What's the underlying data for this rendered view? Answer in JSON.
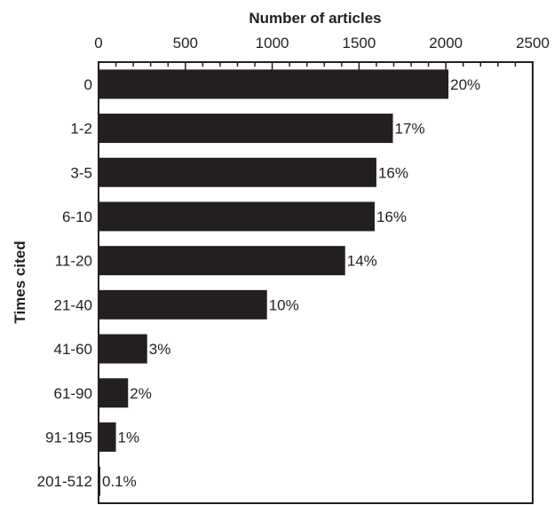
{
  "chart_data": {
    "type": "bar",
    "orientation": "horizontal",
    "xlabel": "Number of articles",
    "ylabel": "Times cited",
    "xlim": [
      0,
      2500
    ],
    "xticks": [
      "0",
      "500",
      "1000",
      "1500",
      "2000",
      "2500"
    ],
    "x_axis_position": "top",
    "grid": false,
    "colors": {
      "bar": "#231f20"
    },
    "categories": [
      "0",
      "1-2",
      "3-5",
      "6-10",
      "11-20",
      "21-40",
      "41-60",
      "61-90",
      "91-195",
      "201-512"
    ],
    "values": [
      2015,
      1695,
      1600,
      1590,
      1420,
      970,
      280,
      170,
      100,
      10
    ],
    "labels": [
      "20%",
      "17%",
      "16%",
      "16%",
      "14%",
      "10%",
      "3%",
      "2%",
      "1%",
      "0.1%"
    ]
  }
}
